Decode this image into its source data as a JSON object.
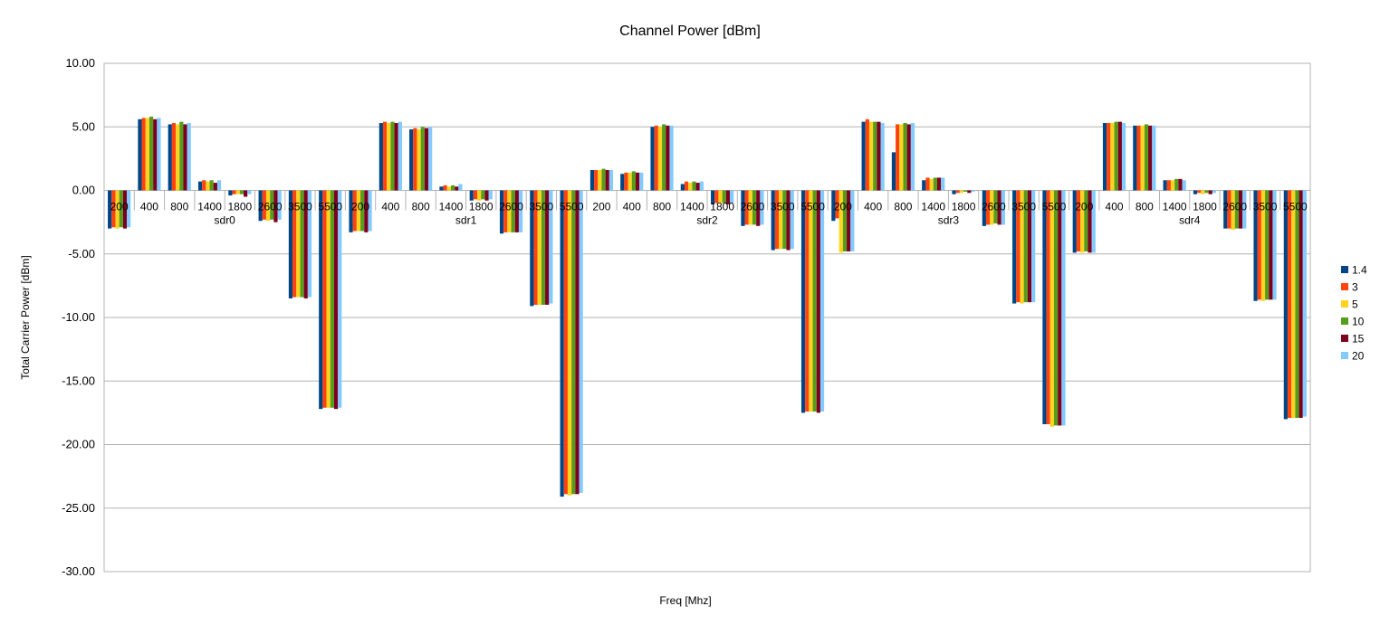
{
  "chart_data": {
    "type": "bar",
    "title": "Channel Power [dBm]",
    "xlabel": "Freq [Mhz]",
    "ylabel": "Total Carrier Power [dBm]",
    "ylim": [
      -30,
      10
    ],
    "yticks": [
      "10.00",
      "5.00",
      "0.00",
      "-5.00",
      "-10.00",
      "-15.00",
      "-20.00",
      "-25.00",
      "-30.00"
    ],
    "grid": true,
    "legend_position": "right",
    "groups": [
      {
        "name": "sdr0",
        "categories": [
          "200",
          "400",
          "800",
          "1400",
          "1800",
          "2600",
          "3500",
          "5500"
        ]
      },
      {
        "name": "sdr1",
        "categories": [
          "200",
          "400",
          "800",
          "1400",
          "1800",
          "2600",
          "3500",
          "5500"
        ]
      },
      {
        "name": "sdr2",
        "categories": [
          "200",
          "400",
          "800",
          "1400",
          "1800",
          "2600",
          "3500",
          "5500"
        ]
      },
      {
        "name": "sdr3",
        "categories": [
          "200",
          "400",
          "800",
          "1400",
          "1800",
          "2600",
          "3500",
          "5500"
        ]
      },
      {
        "name": "sdr4",
        "categories": [
          "200",
          "400",
          "800",
          "1400",
          "1800",
          "2600",
          "3500",
          "5500"
        ]
      }
    ],
    "series": [
      {
        "name": "1.4",
        "color": "#004586",
        "values": [
          -3.0,
          5.6,
          5.2,
          0.7,
          -0.4,
          -2.4,
          -8.5,
          -17.2,
          -3.3,
          5.3,
          4.8,
          0.3,
          -0.8,
          -3.4,
          -9.1,
          -24.1,
          1.6,
          1.3,
          5.0,
          0.5,
          -1.1,
          -2.8,
          -4.7,
          -17.5,
          -2.4,
          5.4,
          3.0,
          0.8,
          -0.3,
          -2.8,
          -8.9,
          -18.4,
          -4.9,
          5.3,
          5.1,
          0.8,
          -0.3,
          -3.0,
          -8.7,
          -18.0
        ]
      },
      {
        "name": "3",
        "color": "#ff420e",
        "values": [
          -2.9,
          5.7,
          5.3,
          0.8,
          -0.3,
          -2.3,
          -8.4,
          -17.1,
          -3.2,
          5.4,
          4.9,
          0.4,
          -0.7,
          -3.3,
          -9.0,
          -23.9,
          1.6,
          1.4,
          5.1,
          0.7,
          -1.0,
          -2.7,
          -4.6,
          -17.4,
          -2.2,
          5.6,
          5.2,
          1.0,
          -0.2,
          -2.7,
          -8.8,
          -18.4,
          -4.8,
          5.3,
          5.1,
          0.8,
          -0.2,
          -3.0,
          -8.6,
          -17.9
        ]
      },
      {
        "name": "5",
        "color": "#ffd320",
        "values": [
          -3.0,
          5.7,
          5.2,
          0.7,
          -0.3,
          -2.4,
          -8.4,
          -17.1,
          -3.2,
          5.3,
          4.8,
          0.3,
          -0.8,
          -3.3,
          -9.0,
          -24.0,
          1.6,
          1.4,
          5.0,
          0.6,
          -1.0,
          -2.7,
          -4.6,
          -17.4,
          -4.9,
          5.4,
          5.2,
          0.9,
          -0.2,
          -2.7,
          -8.9,
          -18.6,
          -4.9,
          5.3,
          5.1,
          0.8,
          -0.3,
          -3.1,
          -8.7,
          -17.9
        ]
      },
      {
        "name": "10",
        "color": "#579d1c",
        "values": [
          -2.9,
          5.8,
          5.4,
          0.8,
          -0.3,
          -2.3,
          -8.4,
          -17.1,
          -3.2,
          5.4,
          5.0,
          0.4,
          -0.7,
          -3.3,
          -9.0,
          -23.9,
          1.7,
          1.5,
          5.2,
          0.7,
          -1.0,
          -2.7,
          -4.6,
          -17.4,
          -4.8,
          5.4,
          5.3,
          1.0,
          -0.1,
          -2.6,
          -8.8,
          -18.5,
          -4.8,
          5.4,
          5.2,
          0.9,
          -0.2,
          -3.0,
          -8.6,
          -17.9
        ]
      },
      {
        "name": "15",
        "color": "#7e0021",
        "values": [
          -3.0,
          5.6,
          5.2,
          0.6,
          -0.5,
          -2.5,
          -8.5,
          -17.2,
          -3.3,
          5.3,
          4.9,
          0.3,
          -0.8,
          -3.3,
          -9.0,
          -23.9,
          1.6,
          1.4,
          5.1,
          0.6,
          -1.1,
          -2.8,
          -4.7,
          -17.5,
          -4.8,
          5.4,
          5.2,
          1.0,
          -0.2,
          -2.7,
          -8.8,
          -18.5,
          -4.9,
          5.4,
          5.1,
          0.9,
          -0.3,
          -3.0,
          -8.6,
          -17.9
        ]
      },
      {
        "name": "20",
        "color": "#83caff",
        "values": [
          -2.9,
          5.7,
          5.3,
          0.8,
          -0.3,
          -2.3,
          -8.4,
          -17.1,
          -3.2,
          5.4,
          5.0,
          0.5,
          -0.7,
          -3.3,
          -8.9,
          -23.8,
          1.6,
          1.4,
          5.1,
          0.7,
          -1.0,
          -2.7,
          -4.6,
          -17.4,
          -4.8,
          5.3,
          5.3,
          1.0,
          -0.1,
          -2.7,
          -8.8,
          -18.5,
          -4.9,
          5.3,
          5.1,
          0.8,
          -0.2,
          -3.0,
          -8.6,
          -17.8
        ]
      }
    ]
  }
}
